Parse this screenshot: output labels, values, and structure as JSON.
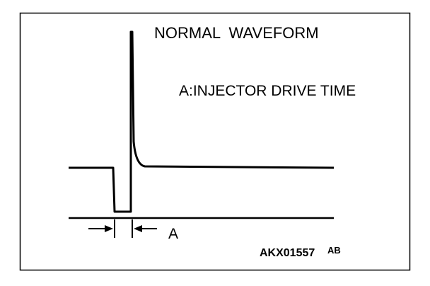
{
  "title": "NORMAL  WAVEFORM",
  "legend": "A:INJECTOR DRIVE TIME",
  "marker_label": "A",
  "figure_code": "AKX01557",
  "figure_suffix": "AB"
}
